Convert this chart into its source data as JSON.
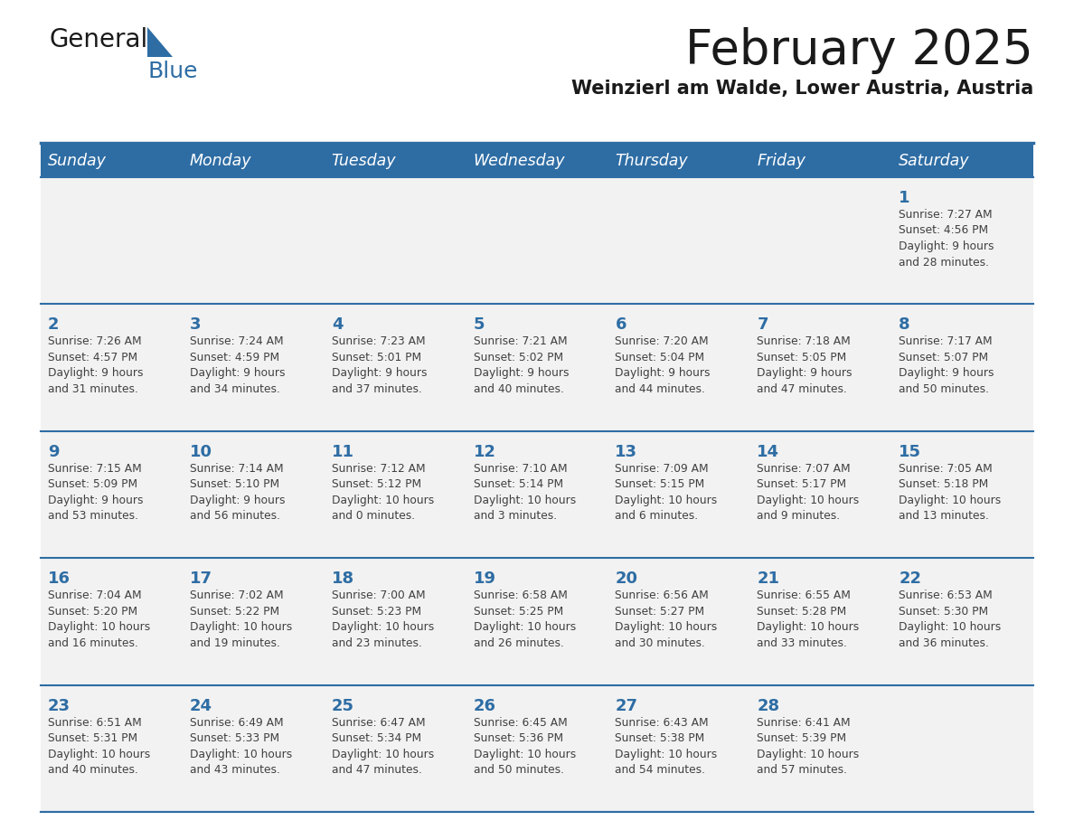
{
  "title": "February 2025",
  "subtitle": "Weinzierl am Walde, Lower Austria, Austria",
  "header_bg": "#2E6DA4",
  "header_text": "#FFFFFF",
  "cell_bg_light": "#F2F2F2",
  "day_number_color": "#2E6DA4",
  "info_text_color": "#404040",
  "border_color": "#2E6DA4",
  "days_of_week": [
    "Sunday",
    "Monday",
    "Tuesday",
    "Wednesday",
    "Thursday",
    "Friday",
    "Saturday"
  ],
  "weeks": [
    [
      {
        "day": null,
        "info": null
      },
      {
        "day": null,
        "info": null
      },
      {
        "day": null,
        "info": null
      },
      {
        "day": null,
        "info": null
      },
      {
        "day": null,
        "info": null
      },
      {
        "day": null,
        "info": null
      },
      {
        "day": 1,
        "info": "Sunrise: 7:27 AM\nSunset: 4:56 PM\nDaylight: 9 hours\nand 28 minutes."
      }
    ],
    [
      {
        "day": 2,
        "info": "Sunrise: 7:26 AM\nSunset: 4:57 PM\nDaylight: 9 hours\nand 31 minutes."
      },
      {
        "day": 3,
        "info": "Sunrise: 7:24 AM\nSunset: 4:59 PM\nDaylight: 9 hours\nand 34 minutes."
      },
      {
        "day": 4,
        "info": "Sunrise: 7:23 AM\nSunset: 5:01 PM\nDaylight: 9 hours\nand 37 minutes."
      },
      {
        "day": 5,
        "info": "Sunrise: 7:21 AM\nSunset: 5:02 PM\nDaylight: 9 hours\nand 40 minutes."
      },
      {
        "day": 6,
        "info": "Sunrise: 7:20 AM\nSunset: 5:04 PM\nDaylight: 9 hours\nand 44 minutes."
      },
      {
        "day": 7,
        "info": "Sunrise: 7:18 AM\nSunset: 5:05 PM\nDaylight: 9 hours\nand 47 minutes."
      },
      {
        "day": 8,
        "info": "Sunrise: 7:17 AM\nSunset: 5:07 PM\nDaylight: 9 hours\nand 50 minutes."
      }
    ],
    [
      {
        "day": 9,
        "info": "Sunrise: 7:15 AM\nSunset: 5:09 PM\nDaylight: 9 hours\nand 53 minutes."
      },
      {
        "day": 10,
        "info": "Sunrise: 7:14 AM\nSunset: 5:10 PM\nDaylight: 9 hours\nand 56 minutes."
      },
      {
        "day": 11,
        "info": "Sunrise: 7:12 AM\nSunset: 5:12 PM\nDaylight: 10 hours\nand 0 minutes."
      },
      {
        "day": 12,
        "info": "Sunrise: 7:10 AM\nSunset: 5:14 PM\nDaylight: 10 hours\nand 3 minutes."
      },
      {
        "day": 13,
        "info": "Sunrise: 7:09 AM\nSunset: 5:15 PM\nDaylight: 10 hours\nand 6 minutes."
      },
      {
        "day": 14,
        "info": "Sunrise: 7:07 AM\nSunset: 5:17 PM\nDaylight: 10 hours\nand 9 minutes."
      },
      {
        "day": 15,
        "info": "Sunrise: 7:05 AM\nSunset: 5:18 PM\nDaylight: 10 hours\nand 13 minutes."
      }
    ],
    [
      {
        "day": 16,
        "info": "Sunrise: 7:04 AM\nSunset: 5:20 PM\nDaylight: 10 hours\nand 16 minutes."
      },
      {
        "day": 17,
        "info": "Sunrise: 7:02 AM\nSunset: 5:22 PM\nDaylight: 10 hours\nand 19 minutes."
      },
      {
        "day": 18,
        "info": "Sunrise: 7:00 AM\nSunset: 5:23 PM\nDaylight: 10 hours\nand 23 minutes."
      },
      {
        "day": 19,
        "info": "Sunrise: 6:58 AM\nSunset: 5:25 PM\nDaylight: 10 hours\nand 26 minutes."
      },
      {
        "day": 20,
        "info": "Sunrise: 6:56 AM\nSunset: 5:27 PM\nDaylight: 10 hours\nand 30 minutes."
      },
      {
        "day": 21,
        "info": "Sunrise: 6:55 AM\nSunset: 5:28 PM\nDaylight: 10 hours\nand 33 minutes."
      },
      {
        "day": 22,
        "info": "Sunrise: 6:53 AM\nSunset: 5:30 PM\nDaylight: 10 hours\nand 36 minutes."
      }
    ],
    [
      {
        "day": 23,
        "info": "Sunrise: 6:51 AM\nSunset: 5:31 PM\nDaylight: 10 hours\nand 40 minutes."
      },
      {
        "day": 24,
        "info": "Sunrise: 6:49 AM\nSunset: 5:33 PM\nDaylight: 10 hours\nand 43 minutes."
      },
      {
        "day": 25,
        "info": "Sunrise: 6:47 AM\nSunset: 5:34 PM\nDaylight: 10 hours\nand 47 minutes."
      },
      {
        "day": 26,
        "info": "Sunrise: 6:45 AM\nSunset: 5:36 PM\nDaylight: 10 hours\nand 50 minutes."
      },
      {
        "day": 27,
        "info": "Sunrise: 6:43 AM\nSunset: 5:38 PM\nDaylight: 10 hours\nand 54 minutes."
      },
      {
        "day": 28,
        "info": "Sunrise: 6:41 AM\nSunset: 5:39 PM\nDaylight: 10 hours\nand 57 minutes."
      },
      {
        "day": null,
        "info": null
      }
    ]
  ]
}
